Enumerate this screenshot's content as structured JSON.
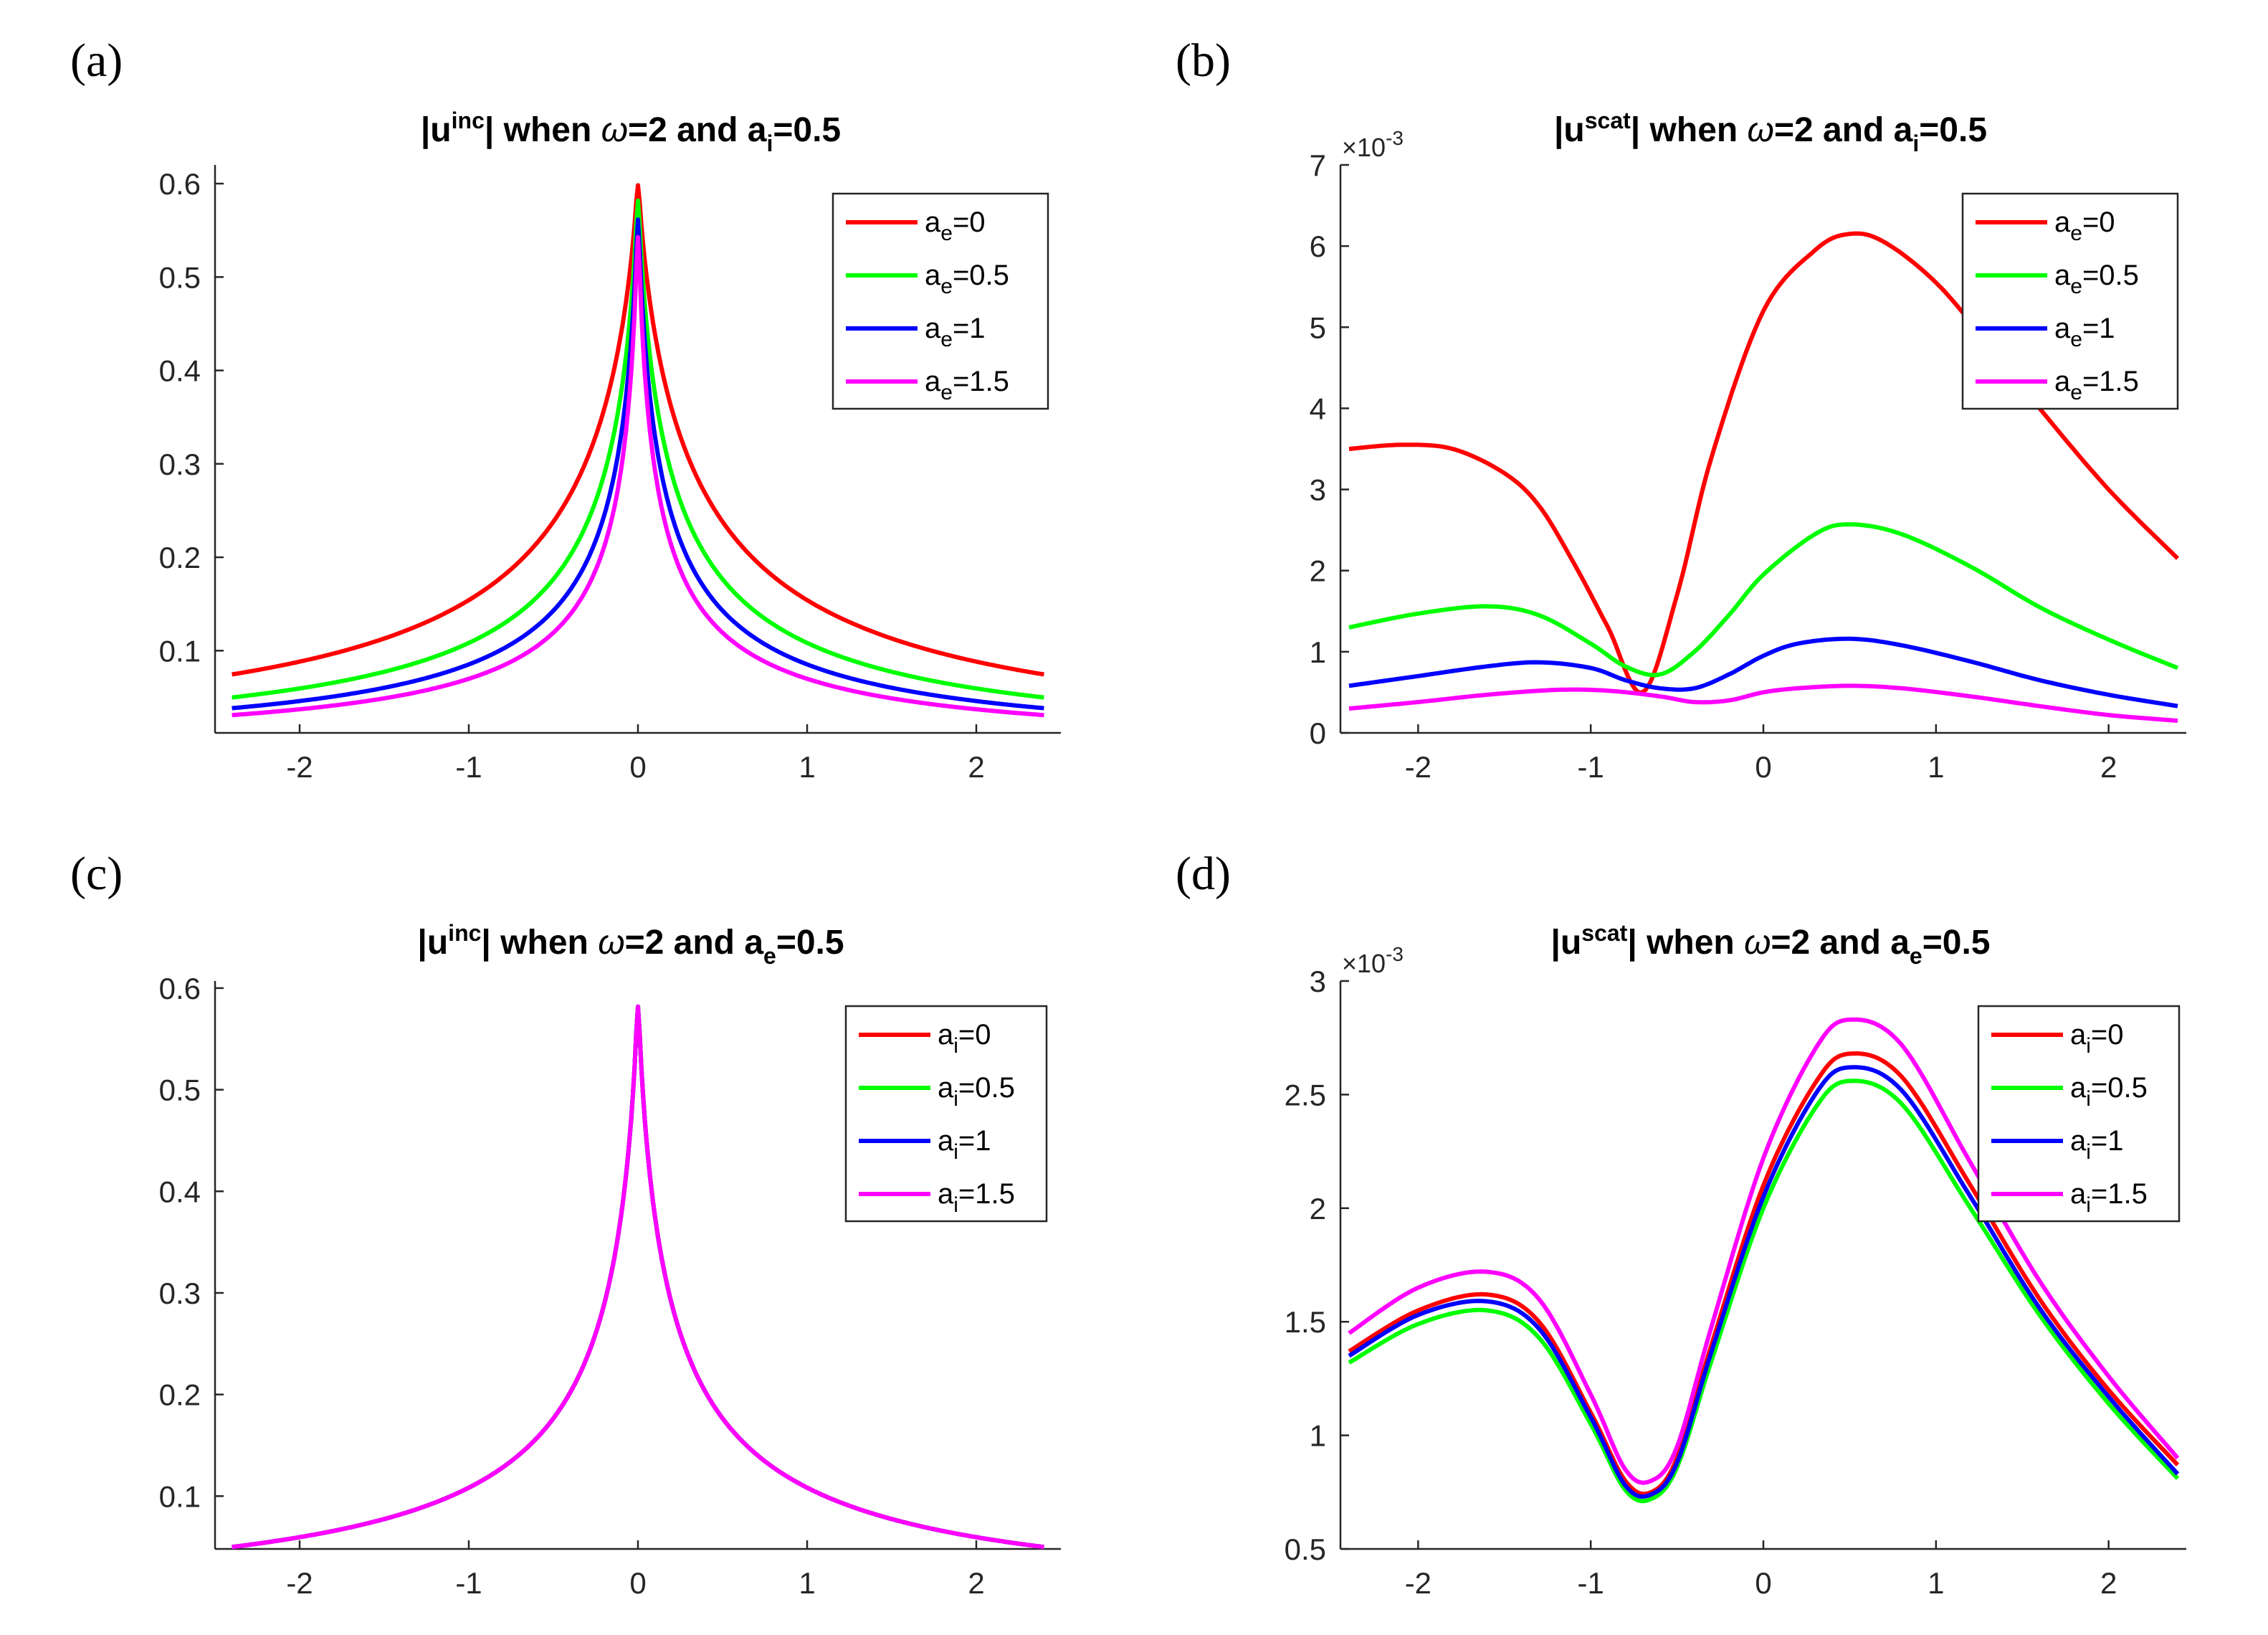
{
  "chart_data": [
    {
      "id": "a",
      "panel_label": "(a)",
      "type": "line",
      "title": {
        "prefix": "|u",
        "sup": "inc",
        "mid": "| when ",
        "omega": "ω",
        "eq": "=2 and a",
        "sub": "i",
        "tail": "=0.5"
      },
      "xlim": [
        -2.5,
        2.5
      ],
      "ylim": [
        0.012,
        0.62
      ],
      "x_ticks": [
        -2,
        -1,
        0,
        1,
        2
      ],
      "x_tick_labels": [
        "-2",
        "-1",
        "0",
        "1",
        "2"
      ],
      "y_ticks": [
        0.1,
        0.2,
        0.3,
        0.4,
        0.5,
        0.6
      ],
      "y_tick_labels": [
        "0.1",
        "0.2",
        "0.3",
        "0.4",
        "0.5",
        "0.6"
      ],
      "multiplier": null,
      "legend": {
        "placement": "top-right",
        "var": "a",
        "sub": "e"
      },
      "series": [
        {
          "name": "a_e=0",
          "label_value": "=0",
          "color": "#ff0000",
          "shape": "inc",
          "A": 0.088,
          "B": 0.615,
          "c": 1.5,
          "r": 0
        },
        {
          "name": "a_e=0.5",
          "label_value": "=0.5",
          "color": "#00ff00",
          "shape": "inc",
          "A": 0.088,
          "B": 0.607,
          "c": 1.5,
          "r": 0.6
        },
        {
          "name": "a_e=1",
          "label_value": "=1",
          "color": "#0000ff",
          "shape": "inc",
          "A": 0.088,
          "B": 0.593,
          "c": 1.5,
          "r": 1.1
        },
        {
          "name": "a_e=1.5",
          "label_value": "=1.5",
          "color": "#ff00ff",
          "shape": "inc",
          "A": 0.088,
          "B": 0.58,
          "c": 1.5,
          "r": 1.6
        }
      ]
    },
    {
      "id": "b",
      "panel_label": "(b)",
      "type": "line",
      "title": {
        "prefix": "|u",
        "sup": "scat",
        "mid": "| when ",
        "omega": "ω",
        "eq": "=2 and a",
        "sub": "i",
        "tail": "=0.5"
      },
      "xlim": [
        -2.45,
        2.45
      ],
      "ylim": [
        0,
        7
      ],
      "x_ticks": [
        -2,
        -1,
        0,
        1,
        2
      ],
      "x_tick_labels": [
        "-2",
        "-1",
        "0",
        "1",
        "2"
      ],
      "y_ticks": [
        0,
        1,
        2,
        3,
        4,
        5,
        6,
        7
      ],
      "y_tick_labels": [
        "0",
        "1",
        "2",
        "3",
        "4",
        "5",
        "6",
        "7"
      ],
      "multiplier": {
        "base": "×10",
        "exp": "-3"
      },
      "legend": {
        "placement": "top-right",
        "var": "a",
        "sub": "e"
      },
      "series": [
        {
          "name": "a_e=0",
          "label_value": "=0",
          "color": "#ff0000",
          "x": [
            -2.4,
            -2.1,
            -1.8,
            -1.5,
            -1.3,
            -1.1,
            -0.9,
            -0.7,
            -0.5,
            -0.3,
            0,
            0.3,
            0.5,
            0.7,
            1.0,
            1.3,
            1.6,
            2.0,
            2.4
          ],
          "y": [
            3.5,
            3.55,
            3.5,
            3.2,
            2.8,
            2.1,
            1.3,
            0.5,
            1.7,
            3.4,
            5.2,
            5.95,
            6.15,
            6.05,
            5.55,
            4.8,
            4.0,
            3.0,
            2.15
          ]
        },
        {
          "name": "a_e=0.5",
          "label_value": "=0.5",
          "color": "#00ff00",
          "x": [
            -2.4,
            -2.0,
            -1.6,
            -1.3,
            -1.0,
            -0.8,
            -0.6,
            -0.4,
            -0.2,
            0,
            0.3,
            0.5,
            0.8,
            1.2,
            1.6,
            2.0,
            2.4
          ],
          "y": [
            1.3,
            1.47,
            1.56,
            1.45,
            1.1,
            0.82,
            0.72,
            1.0,
            1.45,
            1.95,
            2.45,
            2.57,
            2.45,
            2.05,
            1.55,
            1.15,
            0.8
          ]
        },
        {
          "name": "a_e=1",
          "label_value": "=1",
          "color": "#0000ff",
          "x": [
            -2.4,
            -2.0,
            -1.6,
            -1.3,
            -1.0,
            -0.8,
            -0.6,
            -0.4,
            -0.2,
            0,
            0.2,
            0.5,
            0.8,
            1.2,
            1.6,
            2.0,
            2.4
          ],
          "y": [
            0.58,
            0.7,
            0.82,
            0.87,
            0.8,
            0.65,
            0.55,
            0.55,
            0.72,
            0.95,
            1.1,
            1.16,
            1.08,
            0.88,
            0.65,
            0.47,
            0.33
          ]
        },
        {
          "name": "a_e=1.5",
          "label_value": "=1.5",
          "color": "#ff00ff",
          "x": [
            -2.4,
            -2.0,
            -1.6,
            -1.2,
            -0.9,
            -0.6,
            -0.4,
            -0.2,
            0,
            0.2,
            0.5,
            0.8,
            1.2,
            1.6,
            2.0,
            2.4
          ],
          "y": [
            0.3,
            0.38,
            0.47,
            0.53,
            0.52,
            0.45,
            0.38,
            0.4,
            0.5,
            0.55,
            0.58,
            0.55,
            0.45,
            0.33,
            0.22,
            0.15
          ]
        }
      ]
    },
    {
      "id": "c",
      "panel_label": "(c)",
      "type": "line",
      "title": {
        "prefix": "|u",
        "sup": "inc",
        "mid": "| when ",
        "omega": "ω",
        "eq": "=2 and a",
        "sub": "e",
        "tail": "=0.5"
      },
      "xlim": [
        -2.5,
        2.5
      ],
      "ylim": [
        0.048,
        0.607
      ],
      "x_ticks": [
        -2,
        -1,
        0,
        1,
        2
      ],
      "x_tick_labels": [
        "-2",
        "-1",
        "0",
        "1",
        "2"
      ],
      "y_ticks": [
        0.1,
        0.2,
        0.3,
        0.4,
        0.5,
        0.6
      ],
      "y_tick_labels": [
        "0.1",
        "0.2",
        "0.3",
        "0.4",
        "0.5",
        "0.6"
      ],
      "multiplier": null,
      "legend": {
        "placement": "top-right",
        "var": "a",
        "sub": "i"
      },
      "series": [
        {
          "name": "a_i=0",
          "label_value": "=0",
          "color": "#ff0000",
          "shape": "inc",
          "A": 0.088,
          "B": 0.607,
          "c": 1.5,
          "r": 0.6
        },
        {
          "name": "a_i=0.5",
          "label_value": "=0.5",
          "color": "#00ff00",
          "shape": "inc",
          "A": 0.088,
          "B": 0.607,
          "c": 1.5,
          "r": 0.6
        },
        {
          "name": "a_i=1",
          "label_value": "=1",
          "color": "#0000ff",
          "shape": "inc",
          "A": 0.088,
          "B": 0.607,
          "c": 1.5,
          "r": 0.6
        },
        {
          "name": "a_i=1.5",
          "label_value": "=1.5",
          "color": "#ff00ff",
          "shape": "inc",
          "A": 0.088,
          "B": 0.607,
          "c": 1.5,
          "r": 0.6
        }
      ]
    },
    {
      "id": "d",
      "panel_label": "(d)",
      "type": "line",
      "title": {
        "prefix": "|u",
        "sup": "scat",
        "mid": "| when ",
        "omega": "ω",
        "eq": "=2 and a",
        "sub": "e",
        "tail": "=0.5"
      },
      "xlim": [
        -2.45,
        2.45
      ],
      "ylim": [
        0.5,
        3
      ],
      "x_ticks": [
        -2,
        -1,
        0,
        1,
        2
      ],
      "x_tick_labels": [
        "-2",
        "-1",
        "0",
        "1",
        "2"
      ],
      "y_ticks": [
        0.5,
        1,
        1.5,
        2,
        2.5,
        3
      ],
      "y_tick_labels": [
        "0.5",
        "1",
        "1.5",
        "2",
        "2.5",
        "3"
      ],
      "multiplier": {
        "base": "×10",
        "exp": "-3"
      },
      "legend": {
        "placement": "top-right",
        "var": "a",
        "sub": "i"
      },
      "series": [
        {
          "name": "a_i=0",
          "label_value": "=0",
          "color": "#ff0000",
          "x": [
            -2.4,
            -2.0,
            -1.6,
            -1.3,
            -1.0,
            -0.8,
            -0.65,
            -0.5,
            -0.3,
            0,
            0.3,
            0.5,
            0.8,
            1.2,
            1.6,
            2.0,
            2.4
          ],
          "y": [
            1.37,
            1.55,
            1.62,
            1.5,
            1.1,
            0.8,
            0.75,
            0.9,
            1.4,
            2.1,
            2.55,
            2.68,
            2.58,
            2.1,
            1.6,
            1.2,
            0.87
          ]
        },
        {
          "name": "a_i=0.5",
          "label_value": "=0.5",
          "color": "#00ff00",
          "x": [
            -2.4,
            -2.0,
            -1.6,
            -1.3,
            -1.0,
            -0.8,
            -0.65,
            -0.5,
            -0.3,
            0,
            0.3,
            0.5,
            0.8,
            1.2,
            1.6,
            2.0,
            2.4
          ],
          "y": [
            1.32,
            1.49,
            1.55,
            1.43,
            1.05,
            0.76,
            0.72,
            0.86,
            1.33,
            2.0,
            2.44,
            2.56,
            2.46,
            2.0,
            1.53,
            1.14,
            0.81
          ]
        },
        {
          "name": "a_i=1",
          "label_value": "=1",
          "color": "#0000ff",
          "x": [
            -2.4,
            -2.0,
            -1.6,
            -1.3,
            -1.0,
            -0.8,
            -0.65,
            -0.5,
            -0.3,
            0,
            0.3,
            0.5,
            0.8,
            1.2,
            1.6,
            2.0,
            2.4
          ],
          "y": [
            1.35,
            1.53,
            1.59,
            1.47,
            1.08,
            0.78,
            0.74,
            0.88,
            1.37,
            2.05,
            2.5,
            2.62,
            2.52,
            2.05,
            1.56,
            1.17,
            0.83
          ]
        },
        {
          "name": "a_i=1.5",
          "label_value": "=1.5",
          "color": "#ff00ff",
          "x": [
            -2.4,
            -2.0,
            -1.6,
            -1.3,
            -1.0,
            -0.8,
            -0.65,
            -0.5,
            -0.3,
            0,
            0.3,
            0.5,
            0.8,
            1.2,
            1.6,
            2.0,
            2.4
          ],
          "y": [
            1.45,
            1.65,
            1.72,
            1.6,
            1.18,
            0.85,
            0.8,
            0.95,
            1.48,
            2.22,
            2.7,
            2.83,
            2.72,
            2.2,
            1.68,
            1.26,
            0.9
          ]
        }
      ]
    }
  ]
}
